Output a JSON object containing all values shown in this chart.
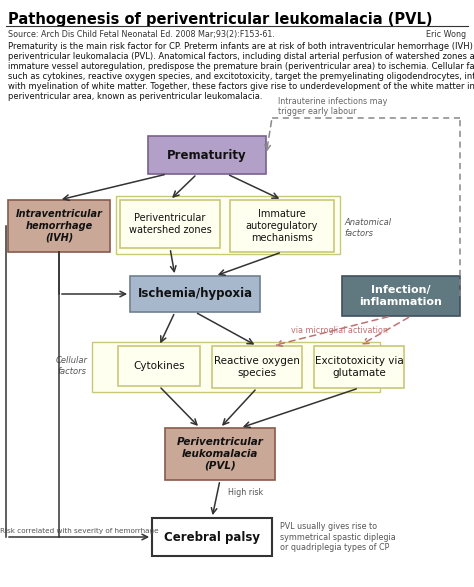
{
  "title": "Pathogenesis of periventricular leukomalacia (PVL)",
  "source": "Source: Arch Dis Child Fetal Neonatal Ed. 2008 Mar;93(2):F153-61.",
  "author": "Eric Wong",
  "body_text_lines": [
    "Prematurity is the main risk factor for CP. Preterm infants are at risk of both intraventricular hemorrhage (IVH) and",
    "periventricular leukomalacia (PVL). Anatomical factors, including distal arterial perfusion of watershed zones and",
    "immature vessel autoregulation, predispose the premature brain (periventricular area) to ischemia. Cellular factors",
    "such as cytokines, reactive oxygen species, and excitotoxicity, target the premyelinating oligodendrocytes, interfering",
    "with myelination of white matter. Together, these factors give rise to underdevelopment of the white matter in the",
    "periventricular area, known as periventricular leukomalacia."
  ],
  "bold_in_body": [
    "Anatomical factors,",
    "Cellular factors"
  ],
  "colors": {
    "prematurity_fc": "#b3a0c8",
    "prematurity_ec": "#7a6090",
    "ivh_fc": "#c9a898",
    "ivh_ec": "#8a5a4a",
    "yellow_fc": "#fffff0",
    "yellow_ec": "#c8c878",
    "ischemia_fc": "#a8b8cc",
    "ischemia_ec": "#708090",
    "infection_fc": "#607880",
    "infection_ec": "#405060",
    "infection_text": "#ffffff",
    "pvl_fc": "#c9a898",
    "pvl_ec": "#8a5a4a",
    "cp_fc": "#ffffff",
    "cp_ec": "#333333",
    "arrow_main": "#333333",
    "arrow_dashed": "#888888",
    "arrow_micro": "#c07070",
    "text_body": "#111111",
    "text_label": "#555555"
  },
  "background": "#ffffff"
}
